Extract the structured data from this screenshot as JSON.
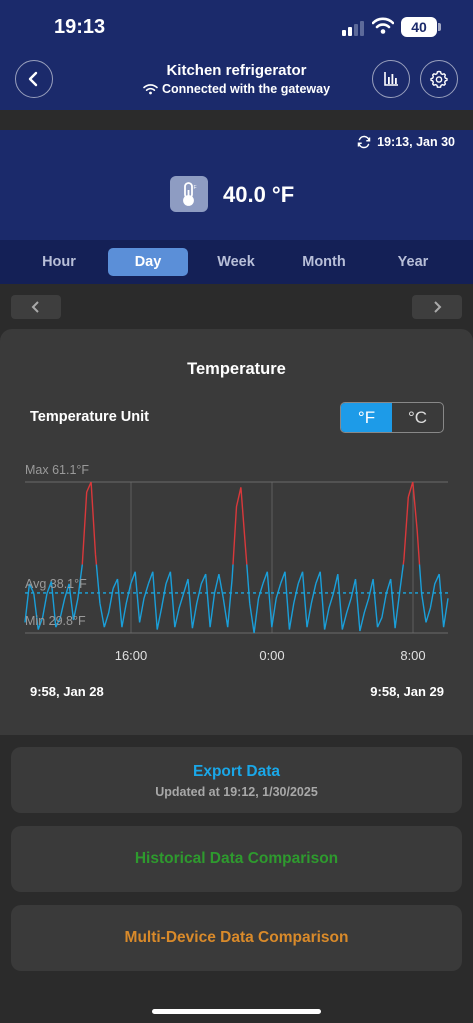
{
  "status_bar": {
    "time": "19:13",
    "battery": "40"
  },
  "header": {
    "title": "Kitchen refrigerator",
    "subtitle": "Connected with the gateway"
  },
  "reading": {
    "updated": "19:13,  Jan 30",
    "value": "40.0 °F"
  },
  "tabs": [
    {
      "label": "Hour",
      "active": false
    },
    {
      "label": "Day",
      "active": true
    },
    {
      "label": "Week",
      "active": false
    },
    {
      "label": "Month",
      "active": false
    },
    {
      "label": "Year",
      "active": false
    }
  ],
  "card": {
    "title": "Temperature",
    "unit_label": "Temperature Unit",
    "unit_options": [
      "°F",
      "°C"
    ],
    "unit_selected": "°F"
  },
  "chart_data": {
    "type": "line",
    "ylim": [
      29.8,
      61.1
    ],
    "reference_lines": [
      {
        "label": "Max 61.1°F",
        "value": 61.1
      },
      {
        "label": "Avg 38.1°F",
        "value": 38.1
      },
      {
        "label": "Min 29.8°F",
        "value": 29.8
      }
    ],
    "x_ticks": [
      "16:00",
      "0:00",
      "8:00"
    ],
    "range_start": "9:58,  Jan 28",
    "range_end": "9:58,  Jan 29",
    "alarm_threshold": 44,
    "series": [
      {
        "color": "#1a9fd9",
        "alarm_color": "#d9383a",
        "values": [
          32,
          40,
          38,
          30.5,
          33,
          38,
          40.5,
          31,
          33,
          37,
          40,
          32.5,
          37,
          44,
          59,
          61.1,
          46,
          36,
          31,
          34,
          39,
          41,
          31,
          36,
          40,
          42.5,
          32,
          37,
          40,
          42.5,
          30.5,
          35,
          40,
          42.5,
          31,
          35,
          38,
          41,
          30.8,
          36,
          40,
          42,
          31,
          38,
          42,
          37,
          31,
          41,
          56,
          60,
          48,
          36,
          29.8,
          37,
          40,
          42.5,
          31,
          37,
          40,
          42.5,
          30.5,
          36,
          40,
          42.5,
          31,
          36,
          40,
          42.5,
          30.5,
          35,
          38,
          42,
          30.5,
          34,
          37,
          41,
          30.2,
          34,
          37,
          41,
          31,
          33,
          38,
          41,
          30.8,
          38,
          45,
          58,
          61.1,
          51,
          38,
          32,
          35,
          40,
          42,
          31,
          37
        ]
      }
    ],
    "colors": {
      "line": "#1a9fd9",
      "alarm": "#d9383a",
      "avg": "#1aa7e0"
    }
  },
  "actions": [
    {
      "label": "Export Data",
      "sub": "Updated at 19:12,  1/30/2025",
      "color": "#1aa7e8"
    },
    {
      "label": "Historical Data Comparison",
      "color": "#2e9a2e"
    },
    {
      "label": "Multi-Device Data Comparison",
      "color": "#d98a2a"
    }
  ]
}
